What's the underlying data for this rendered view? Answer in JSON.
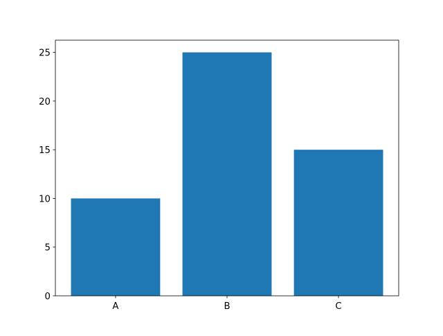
{
  "chart_data": {
    "type": "bar",
    "categories": [
      "A",
      "B",
      "C"
    ],
    "values": [
      10,
      25,
      15
    ],
    "title": "",
    "xlabel": "",
    "ylabel": "",
    "ylim": [
      0,
      26.25
    ],
    "yticks": [
      0,
      5,
      10,
      15,
      20,
      25
    ],
    "grid": false,
    "bar_color": "#1f77b4"
  }
}
